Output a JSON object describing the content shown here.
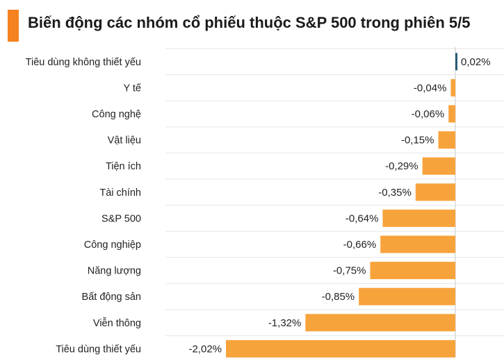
{
  "title": "Biến động các nhóm cổ phiếu thuộc S&P 500 trong phiên 5/5",
  "colors": {
    "accent": "#f58220",
    "bar": "#f7a33c",
    "positive": "#2a5d78",
    "grid": "#e6e6e6",
    "zero_line": "#c8c8c8"
  },
  "chart_data": {
    "type": "bar",
    "orientation": "horizontal",
    "title": "Biến động các nhóm cổ phiếu thuộc S&P 500 trong phiên 5/5",
    "categories": [
      "Tiêu dùng không thiết yếu",
      "Y tế",
      "Công nghệ",
      "Vật liệu",
      "Tiện ích",
      "Tài chính",
      "S&P 500",
      "Công nghiệp",
      "Năng lượng",
      "Bất động sản",
      "Viễn thông",
      "Tiêu dùng thiết yếu"
    ],
    "values": [
      0.02,
      -0.04,
      -0.06,
      -0.15,
      -0.29,
      -0.35,
      -0.64,
      -0.66,
      -0.75,
      -0.85,
      -1.32,
      -2.02
    ],
    "value_labels": [
      "0,02%",
      "-0,04%",
      "-0,06%",
      "-0,15%",
      "-0,29%",
      "-0,35%",
      "-0,64%",
      "-0,66%",
      "-0,75%",
      "-0,85%",
      "-1,32%",
      "-2,02%"
    ],
    "xlim": [
      -2.02,
      0.3
    ],
    "grid": true
  }
}
